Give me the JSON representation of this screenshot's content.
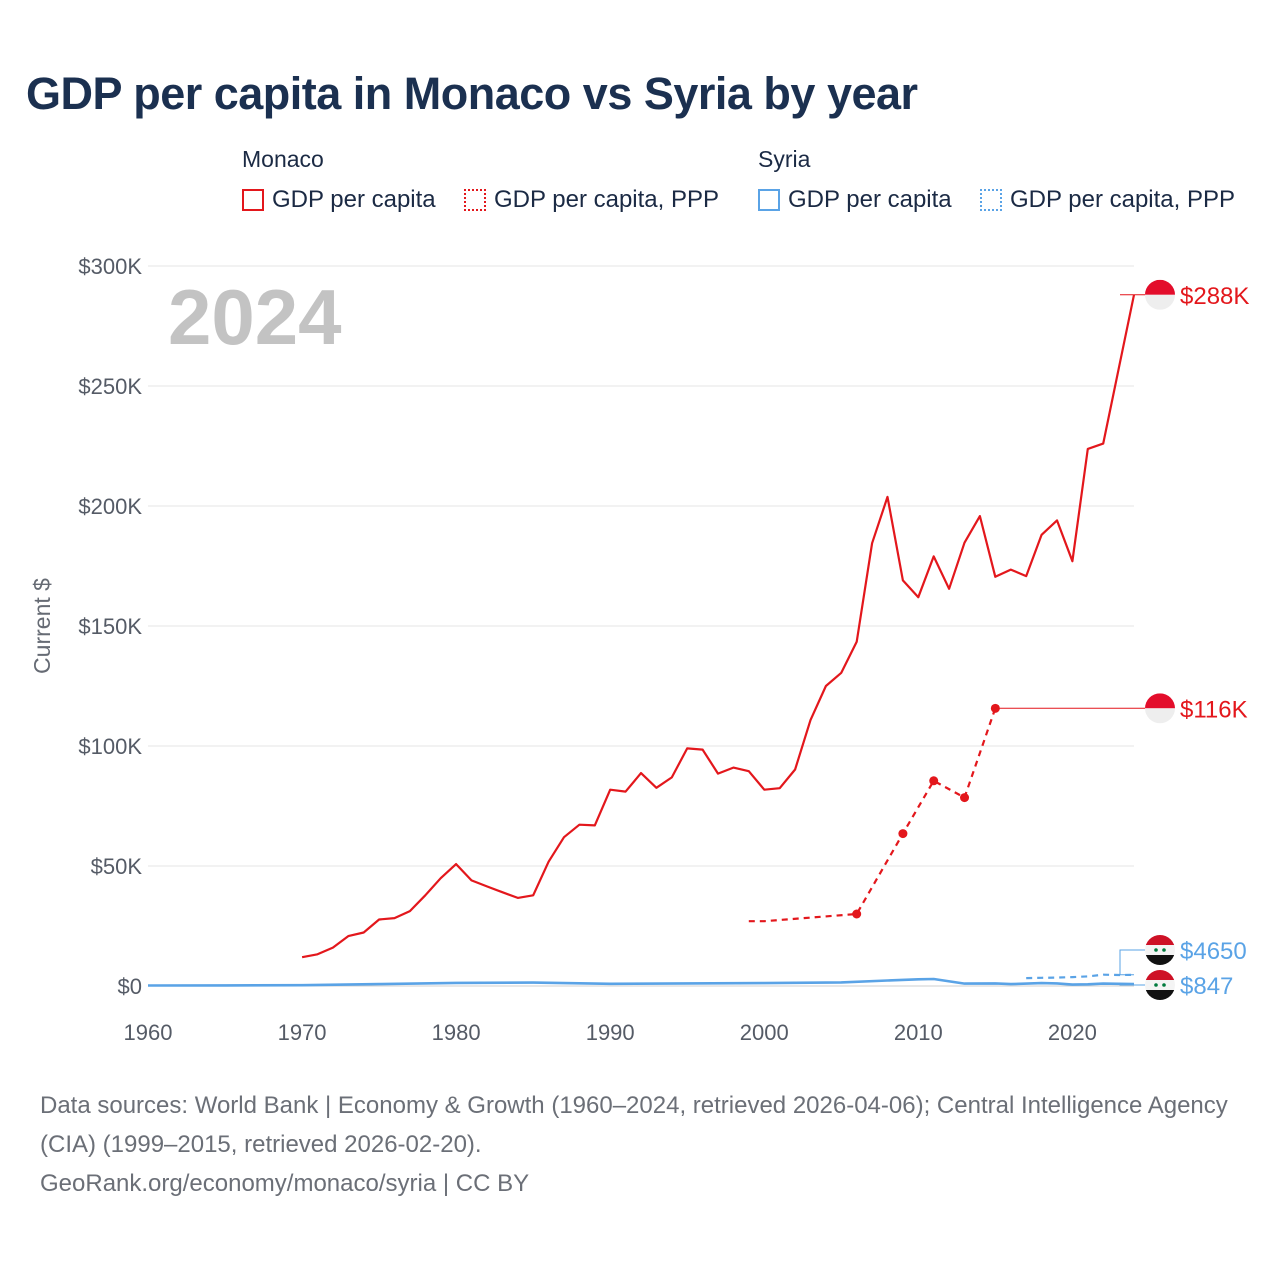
{
  "title": "GDP per capita in Monaco vs Syria by year",
  "legend": {
    "groups": [
      {
        "name": "Monaco",
        "items": [
          {
            "label": "GDP per capita",
            "style": "solid"
          },
          {
            "label": "GDP per capita, PPP",
            "style": "dotted"
          }
        ],
        "color": "#e3171c"
      },
      {
        "name": "Syria",
        "items": [
          {
            "label": "GDP per capita",
            "style": "solid"
          },
          {
            "label": "GDP per capita, PPP",
            "style": "dotted"
          }
        ],
        "color": "#5aa3e6"
      }
    ]
  },
  "footer": {
    "sources": "Data sources: World Bank | Economy & Growth (1960–2024, retrieved 2026-04-06); Central Intelligence Agency (CIA) (1999–2015, retrieved 2026-02-20).",
    "credit": "GeoRank.org/economy/monaco/syria | CC BY"
  },
  "chart_data": {
    "type": "line",
    "title": "GDP per capita in Monaco vs Syria by year",
    "ylabel": "Current $",
    "xlabel": "",
    "year_label": "2024",
    "xlim": [
      1960,
      2024
    ],
    "ylim": [
      0,
      300000
    ],
    "x_ticks": [
      1960,
      1970,
      1980,
      1990,
      2000,
      2010,
      2020
    ],
    "y_ticks": [
      {
        "value": 0,
        "label": "$0"
      },
      {
        "value": 50000,
        "label": "$50K"
      },
      {
        "value": 100000,
        "label": "$100K"
      },
      {
        "value": 150000,
        "label": "$150K"
      },
      {
        "value": 200000,
        "label": "$200K"
      },
      {
        "value": 250000,
        "label": "$250K"
      },
      {
        "value": 300000,
        "label": "$300K"
      }
    ],
    "series": [
      {
        "name": "Monaco GDP per capita",
        "color": "#e3171c",
        "style": "solid",
        "end_label": "$288K",
        "x": [
          1970,
          1971,
          1972,
          1973,
          1974,
          1975,
          1976,
          1977,
          1978,
          1979,
          1980,
          1981,
          1982,
          1983,
          1984,
          1985,
          1986,
          1987,
          1988,
          1989,
          1990,
          1991,
          1992,
          1993,
          1994,
          1995,
          1996,
          1997,
          1998,
          1999,
          2000,
          2001,
          2002,
          2003,
          2004,
          2005,
          2006,
          2007,
          2008,
          2009,
          2010,
          2011,
          2012,
          2013,
          2014,
          2015,
          2016,
          2017,
          2018,
          2019,
          2020,
          2021,
          2022,
          2023,
          2024
        ],
        "y": [
          12000,
          13200,
          16000,
          20800,
          22300,
          27700,
          28300,
          31200,
          37800,
          44900,
          50800,
          44000,
          41500,
          39100,
          36700,
          37800,
          51800,
          62000,
          67200,
          66900,
          81800,
          81000,
          88700,
          82600,
          86900,
          99000,
          98500,
          88500,
          91000,
          89500,
          81800,
          82400,
          90200,
          110800,
          125000,
          130500,
          143400,
          184500,
          203800,
          169000,
          162000,
          179000,
          165500,
          184700,
          195800,
          170500,
          173500,
          170800,
          188000,
          194000,
          177000,
          223800,
          226000,
          257000,
          288000
        ]
      },
      {
        "name": "Monaco GDP per capita, PPP",
        "color": "#e3171c",
        "style": "dashed",
        "end_label": "$116K",
        "x": [
          1999,
          2000,
          2006,
          2009,
          2011,
          2013,
          2015
        ],
        "y": [
          27000,
          27000,
          30000,
          63500,
          85500,
          78500,
          115700
        ],
        "markers": [
          2006,
          2009,
          2011,
          2013,
          2015
        ]
      },
      {
        "name": "Syria GDP per capita",
        "color": "#5aa3e6",
        "style": "solid",
        "end_label": "$847",
        "x": [
          1960,
          1965,
          1970,
          1975,
          1980,
          1985,
          1990,
          1995,
          2000,
          2005,
          2008,
          2010,
          2011,
          2013,
          2015,
          2016,
          2018,
          2019,
          2020,
          2021,
          2022,
          2023,
          2024
        ],
        "y": [
          200,
          250,
          350,
          800,
          1300,
          1400,
          900,
          1100,
          1200,
          1500,
          2300,
          2800,
          2900,
          1000,
          1100,
          800,
          1200,
          1100,
          600,
          700,
          1000,
          900,
          847
        ]
      },
      {
        "name": "Syria GDP per capita, PPP",
        "color": "#5aa3e6",
        "style": "dashed",
        "end_label": "$4650",
        "x": [
          2017,
          2018,
          2019,
          2020,
          2021,
          2022,
          2023,
          2024
        ],
        "y": [
          3300,
          3400,
          3500,
          3700,
          4000,
          4700,
          4600,
          4650
        ]
      }
    ]
  }
}
